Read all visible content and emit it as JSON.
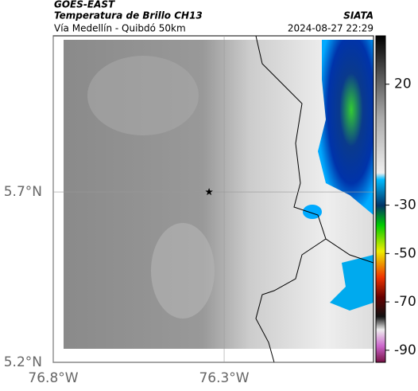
{
  "header": {
    "satellite": "GOES-EAST",
    "product": "Temperatura de Brillo CH13",
    "route": "Vía Medellín - Quibdó 50km",
    "source": "SIATA",
    "timestamp": "2024-08-27 22:29"
  },
  "chart_data": {
    "type": "map",
    "xlim": [
      -76.8,
      -75.863
    ],
    "ylim": [
      5.2,
      6.158
    ],
    "xticks": [
      {
        "value": -76.8,
        "label": "76.8°W"
      },
      {
        "value": -76.3,
        "label": "76.3°W"
      }
    ],
    "yticks": [
      {
        "value": 5.2,
        "label": "5.2°N"
      },
      {
        "value": 5.7,
        "label": "5.7°N"
      }
    ],
    "grid": true,
    "marker": {
      "x": -76.344,
      "y": 5.7
    },
    "colorbar": {
      "lim": [
        -95,
        40
      ],
      "ticks": [
        20,
        -30,
        -50,
        -70,
        -90
      ]
    }
  }
}
